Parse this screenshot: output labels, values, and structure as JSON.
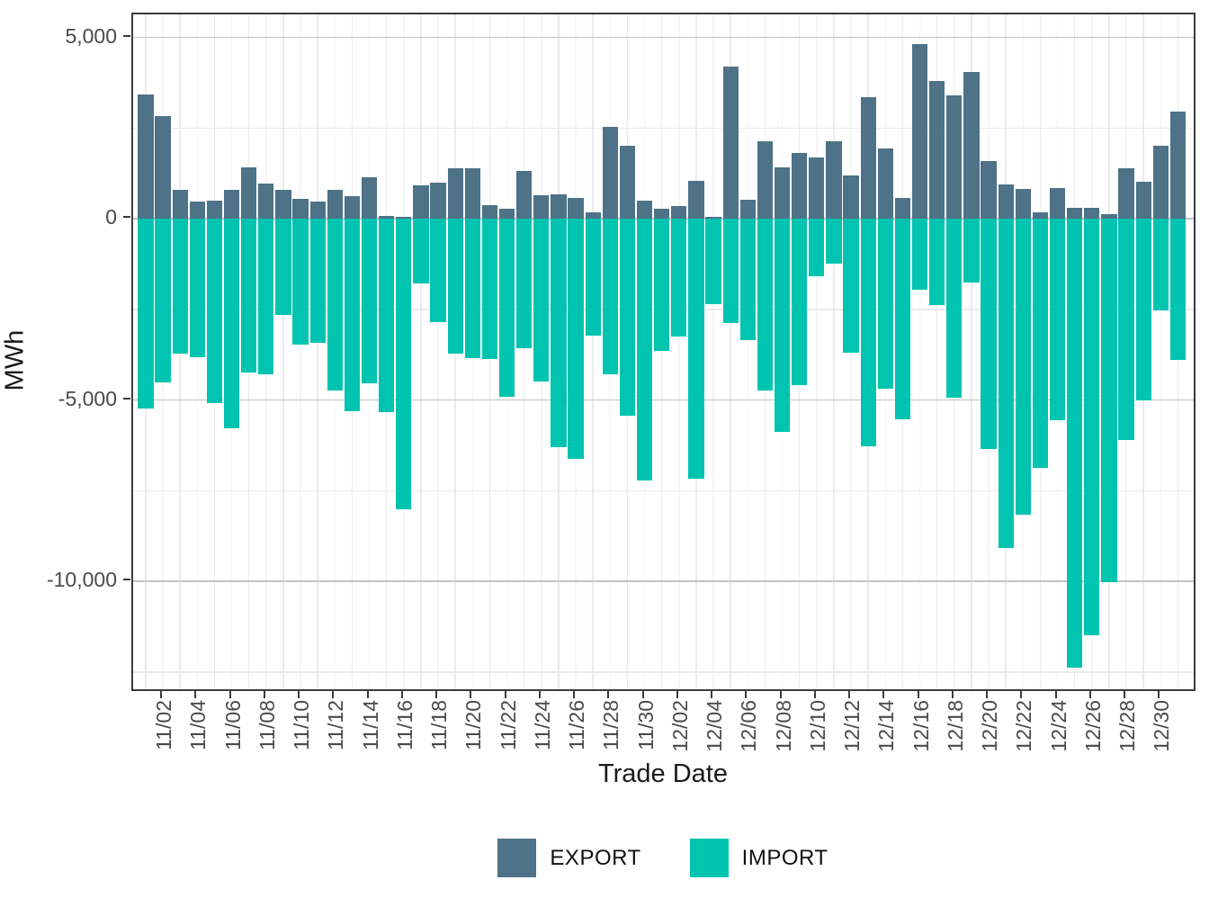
{
  "chart_data": {
    "type": "bar",
    "title": "",
    "xlabel": "Trade Date",
    "ylabel": "MWh",
    "orientation": "vertical-diverging",
    "grid": true,
    "legend_position": "bottom",
    "ylim": [
      -13050,
      5680
    ],
    "y_major_ticks": [
      5000,
      0,
      -5000,
      -10000
    ],
    "y_tick_labels": [
      "5,000",
      "0",
      "-5,000",
      "-10,000"
    ],
    "y_minor_ticks": [
      2500,
      -2500,
      -7500,
      -12500
    ],
    "x_tick_label_every_days": 2,
    "categories": [
      "11/01",
      "11/02",
      "11/03",
      "11/04",
      "11/05",
      "11/06",
      "11/07",
      "11/08",
      "11/09",
      "11/10",
      "11/11",
      "11/12",
      "11/13",
      "11/14",
      "11/15",
      "11/16",
      "11/17",
      "11/18",
      "11/19",
      "11/20",
      "11/21",
      "11/22",
      "11/23",
      "11/24",
      "11/25",
      "11/26",
      "11/27",
      "11/28",
      "11/29",
      "11/30",
      "12/01",
      "12/02",
      "12/03",
      "12/04",
      "12/05",
      "12/06",
      "12/07",
      "12/08",
      "12/09",
      "12/10",
      "12/11",
      "12/12",
      "12/13",
      "12/14",
      "12/15",
      "12/16",
      "12/17",
      "12/18",
      "12/19",
      "12/20",
      "12/21",
      "12/22",
      "12/23",
      "12/24",
      "12/25",
      "12/26",
      "12/27",
      "12/28",
      "12/29",
      "12/30",
      "12/31"
    ],
    "series": [
      {
        "name": "EXPORT",
        "color": "#4e7287",
        "values": [
          3430,
          2830,
          790,
          460,
          490,
          790,
          1410,
          970,
          790,
          540,
          460,
          790,
          610,
          1130,
          85,
          40,
          920,
          1000,
          1390,
          1390,
          380,
          275,
          1320,
          650,
          670,
          580,
          180,
          2540,
          2000,
          490,
          270,
          340,
          1050,
          60,
          4200,
          510,
          2140,
          1420,
          1810,
          1680,
          2140,
          1180,
          3350,
          1930,
          580,
          4810,
          3800,
          3390,
          4050,
          1600,
          940,
          830,
          180,
          850,
          310,
          290,
          130,
          1380,
          1010,
          2020,
          2950
        ]
      },
      {
        "name": "IMPORT",
        "color": "#00c4b0",
        "values": [
          -5240,
          -4520,
          -3720,
          -3830,
          -5080,
          -5790,
          -4250,
          -4290,
          -2650,
          -3470,
          -3430,
          -4740,
          -5300,
          -4540,
          -5330,
          -8010,
          -1780,
          -2850,
          -3730,
          -3850,
          -3880,
          -4910,
          -3570,
          -4480,
          -6310,
          -6620,
          -3230,
          -4300,
          -5430,
          -7230,
          -3660,
          -3250,
          -7180,
          -2350,
          -2870,
          -3350,
          -4750,
          -5880,
          -4580,
          -1600,
          -1250,
          -3700,
          -6270,
          -4700,
          -5530,
          -1960,
          -2380,
          -4930,
          -1750,
          -6350,
          -9080,
          -8170,
          -6870,
          -5550,
          -12380,
          -11500,
          -10020,
          -6100,
          -5000,
          -2520,
          -3890
        ]
      }
    ]
  },
  "axes": {
    "x_title": "Trade Date",
    "y_title": "MWh"
  },
  "legend": {
    "items": [
      {
        "label": "EXPORT",
        "color": "#4e7287"
      },
      {
        "label": "IMPORT",
        "color": "#00c4b0"
      }
    ]
  }
}
